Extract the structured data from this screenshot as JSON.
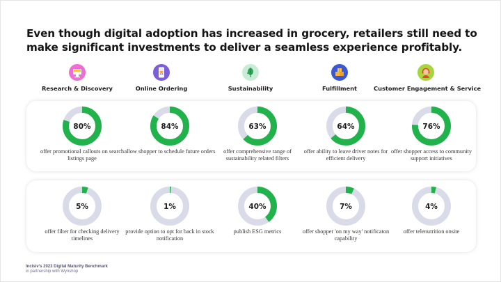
{
  "headline": "Even though digital adoption has increased in grocery, retailers still need to make significant investments to deliver a seamless experience profitably.",
  "colors": {
    "accent": "#22b24c",
    "track": "#d9dce8"
  },
  "categories": [
    {
      "label": "Research & Discovery",
      "icon": "shop-screen-icon",
      "icon_bg": "#f06dd3"
    },
    {
      "label": "Online Ordering",
      "icon": "mobile-cart-icon",
      "icon_bg": "#7a5fd9"
    },
    {
      "label": "Sustainability",
      "icon": "leaf-icon",
      "icon_bg": "#c9ecd6"
    },
    {
      "label": "Fulfillment",
      "icon": "boxes-icon",
      "icon_bg": "#3b59d4"
    },
    {
      "label": "Customer Engagement & Service",
      "icon": "support-agent-icon",
      "icon_bg": "#a6d63c"
    }
  ],
  "row1": [
    {
      "value": 80,
      "label": "80%",
      "desc": "offer promotional callouts on search listings page"
    },
    {
      "value": 84,
      "label": "84%",
      "desc": "allow shopper to schedule future orders"
    },
    {
      "value": 63,
      "label": "63%",
      "desc": "offer comprehensive range of sustainability related filters"
    },
    {
      "value": 64,
      "label": "64%",
      "desc": "offer ability to leave driver notes for efficient delivery"
    },
    {
      "value": 76,
      "label": "76%",
      "desc": "offer shopper access to community support initiatives"
    }
  ],
  "row2": [
    {
      "value": 5,
      "label": "5%",
      "desc": "offer filter for checking delivery timelines"
    },
    {
      "value": 1,
      "label": "1%",
      "desc": "provide option to opt for back in stock notification"
    },
    {
      "value": 40,
      "label": "40%",
      "desc": "publish ESG metrics"
    },
    {
      "value": 7,
      "label": "7%",
      "desc": "offer shopper 'on my way' notificaton capability"
    },
    {
      "value": 4,
      "label": "4%",
      "desc": "offer telenutrition onsite"
    }
  ],
  "footer": {
    "line1": "Incisiv’s 2023 Digital Maturity Benchmark",
    "line2": "in partnership with Wynshop"
  }
}
